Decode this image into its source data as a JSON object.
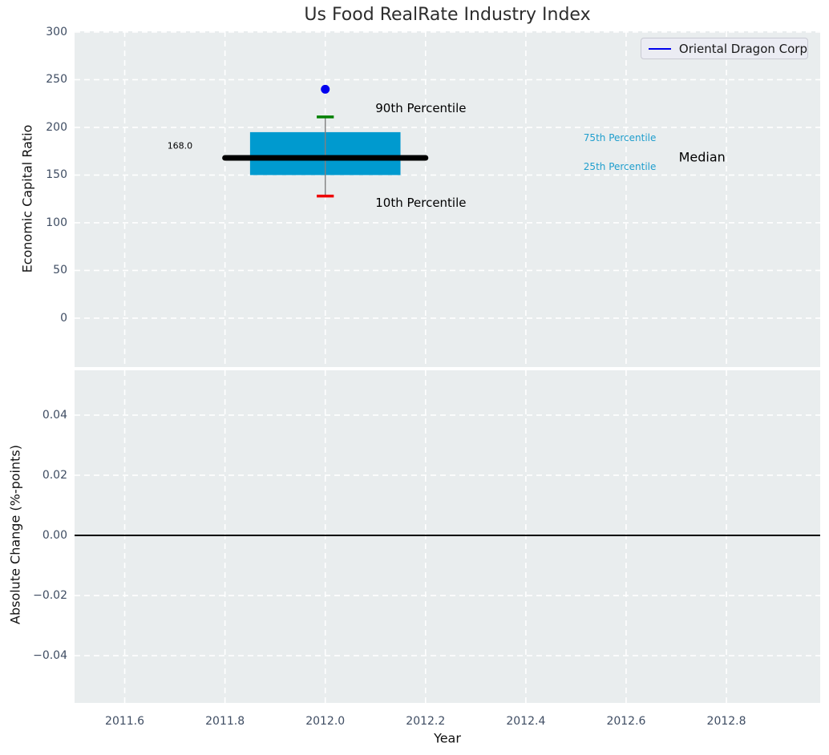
{
  "chart_data": {
    "type": "boxplot",
    "title": "Us Food RealRate Industry Index",
    "xlabel": "Year",
    "xlim": [
      2011.5,
      2012.987
    ],
    "xticks": [
      {
        "v": 2011.6,
        "label": "2011.6"
      },
      {
        "v": 2011.8,
        "label": "2011.8"
      },
      {
        "v": 2012.0,
        "label": "2012.0"
      },
      {
        "v": 2012.2,
        "label": "2012.2"
      },
      {
        "v": 2012.4,
        "label": "2012.4"
      },
      {
        "v": 2012.6,
        "label": "2012.6"
      },
      {
        "v": 2012.8,
        "label": "2012.8"
      }
    ],
    "legend": {
      "label": "Oriental Dragon Corp",
      "line_color": "#0000ee",
      "position": "upper right"
    },
    "grid": {
      "color": "#ffffff",
      "style": "dashed",
      "on": true
    },
    "colors": {
      "figure_bg": "#ffffff",
      "plot_bg": "#e9edee",
      "tick_text": "#3f4d63",
      "axis_label_text": "#111111",
      "title_text": "#2d2d2d"
    },
    "subplots": [
      {
        "ylabel": "Economic Capital Ratio",
        "ylim": [
          -51.3,
          300.8
        ],
        "yticks": [
          {
            "v": 300,
            "label": "300"
          },
          {
            "v": 250,
            "label": "250"
          },
          {
            "v": 200,
            "label": "200"
          },
          {
            "v": 150,
            "label": "150"
          },
          {
            "v": 100,
            "label": "100"
          },
          {
            "v": 50,
            "label": "50"
          },
          {
            "v": 0,
            "label": "0"
          }
        ],
        "box": {
          "x": 2012.0,
          "p10": 128,
          "p25": 150,
          "median": 168,
          "p75": 195,
          "p90": 211,
          "median_value_label": "168.0",
          "company_point": {
            "name": "Oriental Dragon Corp",
            "value": 240
          },
          "box_halfwidth": 0.15,
          "median_halfwidth": 0.2,
          "cap_halfwidth": 0.017,
          "colors": {
            "box": "#009acf",
            "median": "#000000",
            "p90_cap": "#008000",
            "p10_cap": "#ee0000",
            "whisker": "#808080",
            "point": "#0000ee"
          }
        },
        "annotations": [
          {
            "name": "annotation-90th-percentile",
            "text": "90th Percentile",
            "x": 2012.1,
            "y": 220,
            "color": "#000000",
            "size": 15
          },
          {
            "name": "annotation-10th-percentile",
            "text": "10th Percentile",
            "x": 2012.1,
            "y": 121,
            "color": "#000000",
            "size": 15
          },
          {
            "name": "annotation-75th-percentile",
            "text": "75th Percentile",
            "x": 2012.515,
            "y": 189,
            "color": "#1f9ecd",
            "size": 12
          },
          {
            "name": "annotation-25th-percentile",
            "text": "25th Percentile",
            "x": 2012.515,
            "y": 159,
            "color": "#1f9ecd",
            "size": 12
          },
          {
            "name": "annotation-median",
            "text": "Median",
            "x": 2012.705,
            "y": 169,
            "color": "#000000",
            "size": 16
          },
          {
            "name": "annotation-median-value",
            "text": "168.0",
            "x": 2011.685,
            "y": 181,
            "color": "#000000",
            "size": 11
          }
        ]
      },
      {
        "ylabel": "Absolute Change (%-points)",
        "ylim": [
          -0.0557,
          0.0549
        ],
        "yticks": [
          {
            "v": 0.04,
            "label": "0.04"
          },
          {
            "v": 0.02,
            "label": "0.02"
          },
          {
            "v": 0,
            "label": "0.00"
          },
          {
            "v": -0.02,
            "label": "−0.02"
          },
          {
            "v": -0.04,
            "label": "−0.04"
          }
        ],
        "zero_line": {
          "y": 0,
          "color": "#000000"
        }
      }
    ]
  }
}
